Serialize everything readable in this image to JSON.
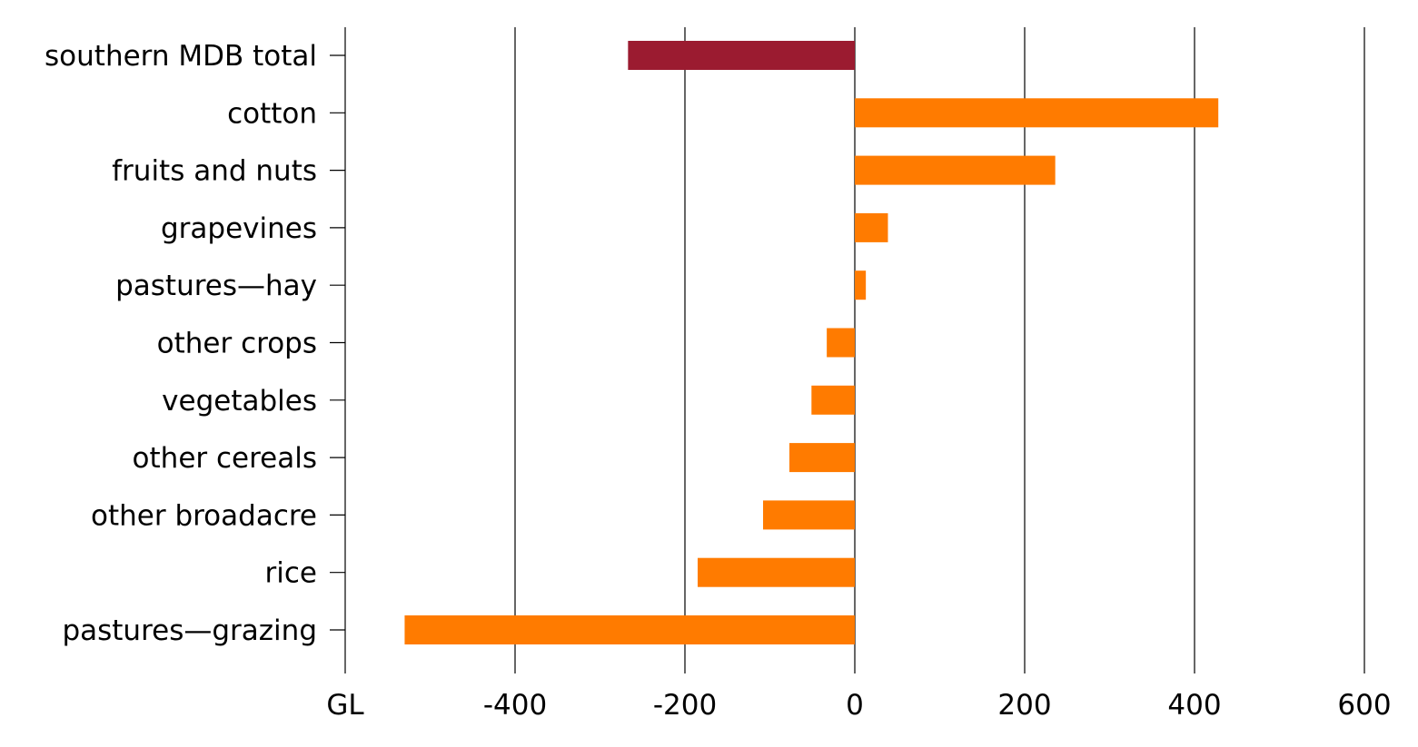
{
  "chart_data": {
    "type": "bar",
    "orientation": "horizontal",
    "title": "",
    "xlabel": "",
    "ylabel": "",
    "unit_label": "GL",
    "xlim": [
      -600,
      600
    ],
    "x_ticks": [
      -400,
      -200,
      0,
      200,
      400,
      600
    ],
    "x_tick_labels": [
      "-400",
      "-200",
      "0",
      "200",
      "400",
      "600"
    ],
    "grid": true,
    "legend": "none",
    "categories": [
      "southern MDB total",
      "cotton",
      "fruits and nuts",
      "grapevines",
      "pastures—hay",
      "other crops",
      "vegetables",
      "other cereals",
      "other broadacre",
      "rice",
      "pastures—grazing"
    ],
    "values": [
      -267,
      428,
      236,
      39,
      13,
      -33,
      -51,
      -77,
      -108,
      -185,
      -530
    ],
    "colors": {
      "total": "#9b1b30",
      "item": "#ff7b00"
    }
  }
}
